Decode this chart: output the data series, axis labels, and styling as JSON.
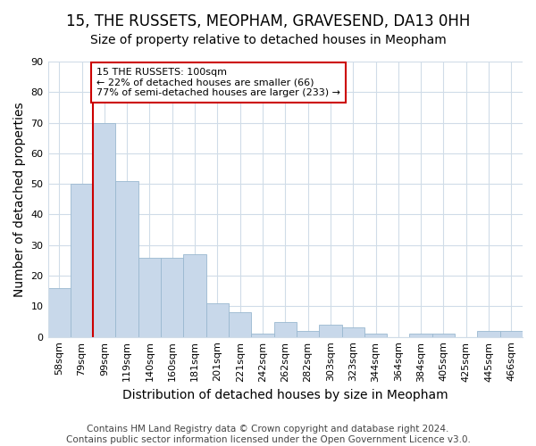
{
  "title": "15, THE RUSSETS, MEOPHAM, GRAVESEND, DA13 0HH",
  "subtitle": "Size of property relative to detached houses in Meopham",
  "xlabel": "Distribution of detached houses by size in Meopham",
  "ylabel": "Number of detached properties",
  "categories": [
    "58sqm",
    "79sqm",
    "99sqm",
    "119sqm",
    "140sqm",
    "160sqm",
    "181sqm",
    "201sqm",
    "221sqm",
    "242sqm",
    "262sqm",
    "282sqm",
    "303sqm",
    "323sqm",
    "344sqm",
    "364sqm",
    "384sqm",
    "405sqm",
    "425sqm",
    "445sqm",
    "466sqm"
  ],
  "values": [
    16,
    50,
    70,
    51,
    26,
    26,
    27,
    11,
    8,
    1,
    5,
    2,
    4,
    3,
    1,
    0,
    1,
    1,
    0,
    2,
    2
  ],
  "bar_color": "#c8d8ea",
  "bar_edge_color": "#9ab8d0",
  "marker_index": 2,
  "marker_color": "#cc0000",
  "annotation_title": "15 THE RUSSETS: 100sqm",
  "annotation_line2": "← 22% of detached houses are smaller (66)",
  "annotation_line3": "77% of semi-detached houses are larger (233) →",
  "annotation_box_color": "#ffffff",
  "annotation_box_edge": "#cc0000",
  "ylim": [
    0,
    90
  ],
  "yticks": [
    0,
    10,
    20,
    30,
    40,
    50,
    60,
    70,
    80,
    90
  ],
  "footer": "Contains HM Land Registry data © Crown copyright and database right 2024.\nContains public sector information licensed under the Open Government Licence v3.0.",
  "bg_color": "#ffffff",
  "plot_bg_color": "#ffffff",
  "grid_color": "#d0dce8",
  "title_fontsize": 12,
  "subtitle_fontsize": 10,
  "axis_label_fontsize": 10,
  "tick_fontsize": 8,
  "footer_fontsize": 7.5
}
